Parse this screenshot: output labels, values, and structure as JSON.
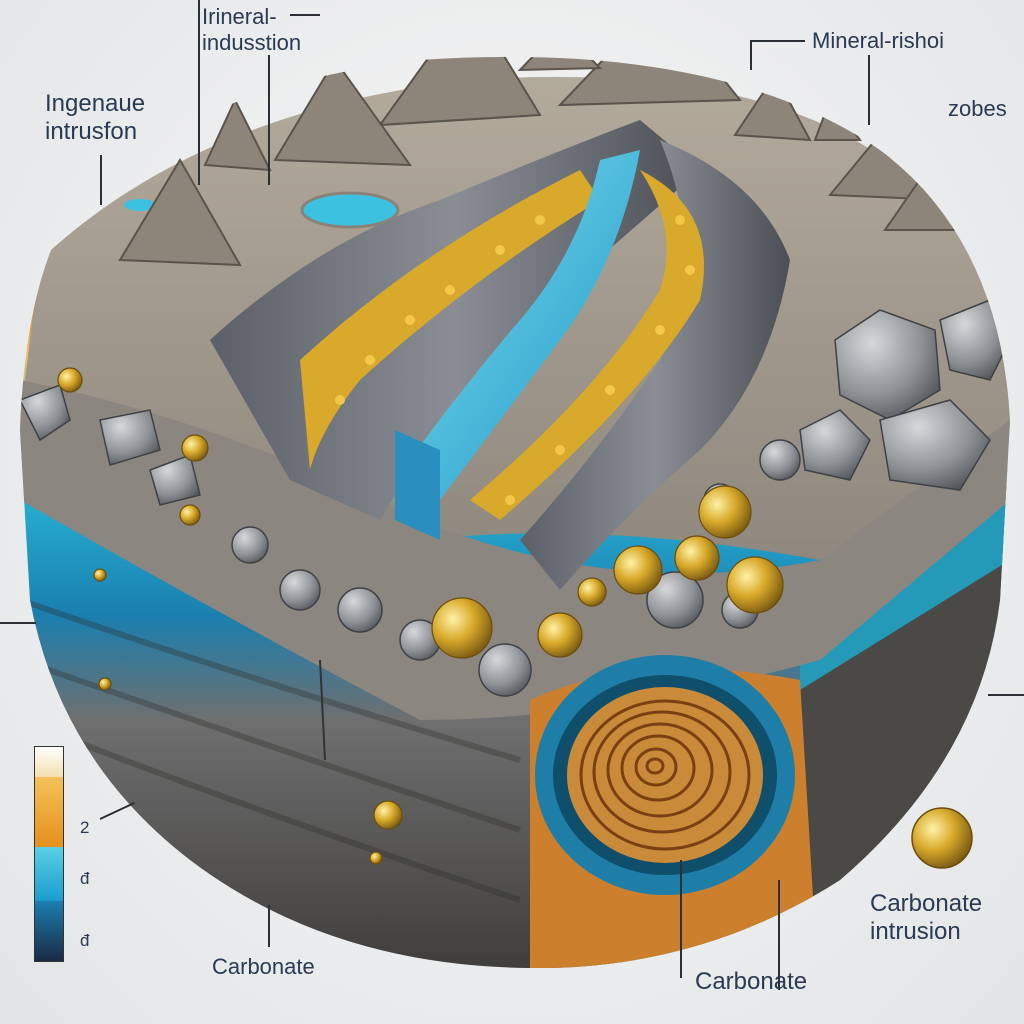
{
  "labels": {
    "mineral_induston": [
      "Irineral-",
      "indusstion"
    ],
    "ingenaue_intrusion": [
      "Ingenaue",
      "intrusfon"
    ],
    "mineral_rishoi": "Mineral-rishoi",
    "zobes": "zobes",
    "carbonate_left": "Carbonate",
    "carbonate_bottom": "Carbonate",
    "carbonate_intrusion": [
      "Carbonate",
      "intrusion"
    ]
  },
  "legend": {
    "tick_top": "2",
    "tick_mid": "đ",
    "tick_bottom": "đ"
  },
  "colors": {
    "label_text": "#2a3a52",
    "gold": "#d8a92a",
    "water": "#2fb6d6",
    "rock": "#7b7d80",
    "soil": "#a79c8c",
    "strata_orange": "#e0a43c",
    "strata_blue": "#1aa5c8"
  },
  "icons": [
    "mountain-icon",
    "gold-nugget-icon",
    "boulder-icon",
    "spiral-core-icon",
    "water-channel-icon"
  ]
}
